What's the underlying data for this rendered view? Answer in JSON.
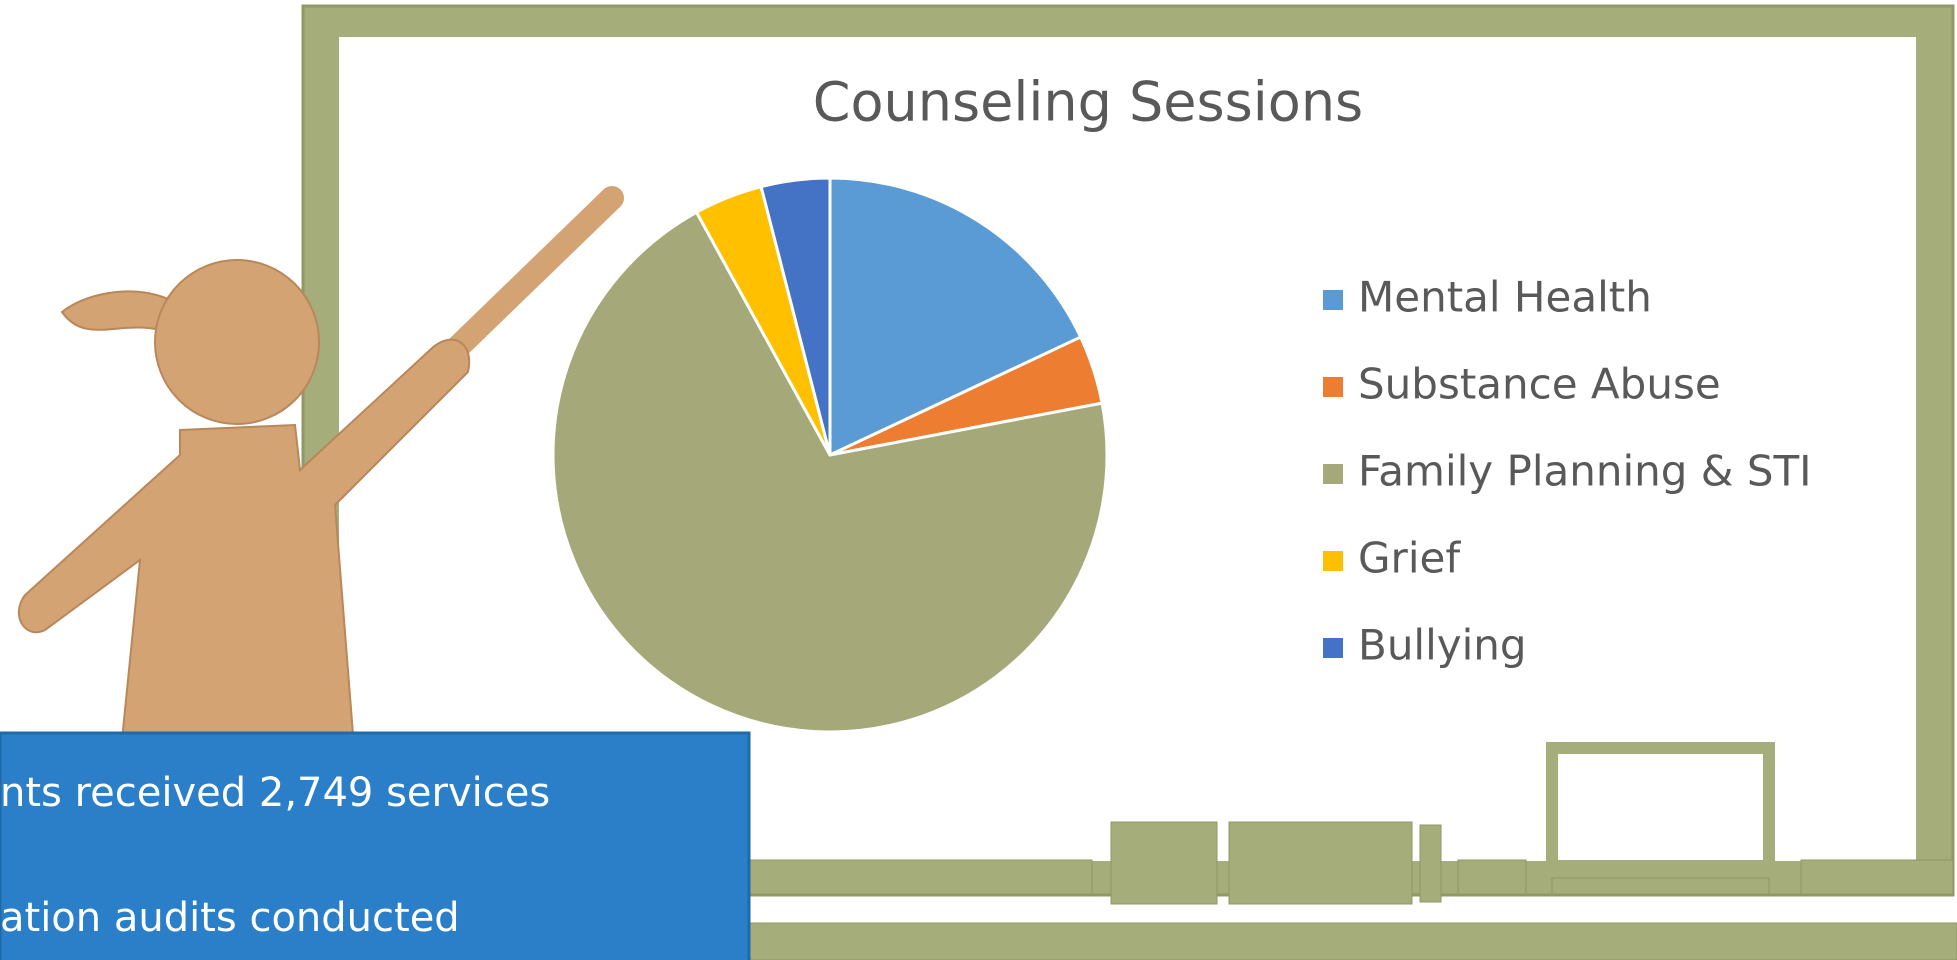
{
  "chart_data": {
    "type": "pie",
    "title": "Counseling Sessions",
    "categories": [
      "Mental Health",
      "Substance Abuse",
      "Family Planning & STI",
      "Grief",
      "Bullying"
    ],
    "values": [
      18,
      4,
      70,
      4,
      4
    ],
    "colors": [
      "#5b9bd5",
      "#ed7d31",
      "#a5a878",
      "#ffc000",
      "#4472c4"
    ],
    "legend": "right"
  },
  "callout": {
    "lines": [
      "nts received 2,749 services",
      "ation audits conducted"
    ]
  }
}
